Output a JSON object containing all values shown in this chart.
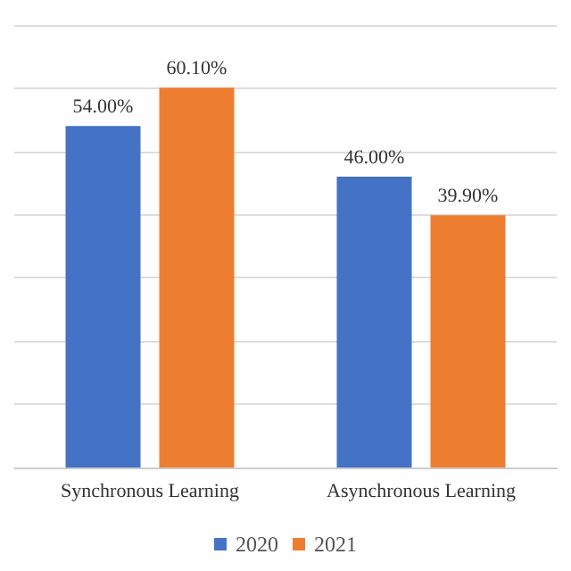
{
  "chart_data": {
    "type": "bar",
    "categories": [
      "Synchronous Learning",
      "Asynchronous Learning"
    ],
    "series": [
      {
        "name": "2020",
        "color": "#4472c4",
        "values": [
          54.0,
          46.0
        ],
        "value_labels": [
          "54.00%",
          "46.00%"
        ]
      },
      {
        "name": "2021",
        "color": "#ed7d31",
        "values": [
          60.1,
          39.9
        ],
        "value_labels": [
          "60.10%",
          "39.90%"
        ]
      }
    ],
    "ylim": [
      0,
      70
    ],
    "yticks": [
      0,
      10,
      20,
      30,
      40,
      50,
      60,
      70
    ],
    "grid": "y",
    "tick_labels": "x",
    "legend": "bottom"
  }
}
